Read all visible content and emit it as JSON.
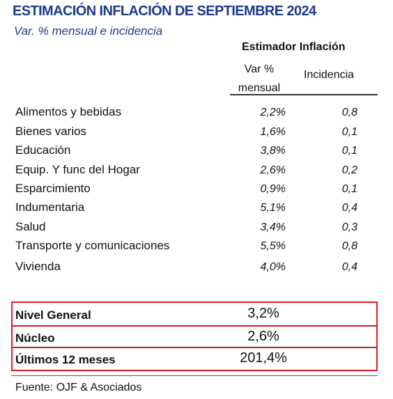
{
  "title": "ESTIMACIÓN INFLACIÓN DE SEPTIEMBRE 2024",
  "subtitle": "Var. % mensual e incidencia",
  "table": {
    "group_header": "Estimador Inflación",
    "col_var": "Var % mensual",
    "col_inc": "Incidencia",
    "rows": [
      {
        "category": "Alimentos y bebidas",
        "var": "2,2%",
        "inc": "0,8"
      },
      {
        "category": "Bienes varios",
        "var": "1,6%",
        "inc": "0,1"
      },
      {
        "category": "Educación",
        "var": "3,8%",
        "inc": "0,1"
      },
      {
        "category": "Equip. Y func del Hogar",
        "var": "2,6%",
        "inc": "0,2"
      },
      {
        "category": "Esparcimiento",
        "var": "0,9%",
        "inc": "0,1"
      },
      {
        "category": "Indumentaria",
        "var": "5,1%",
        "inc": "0,4"
      },
      {
        "category": "Salud",
        "var": "3,4%",
        "inc": "0,3"
      },
      {
        "category": "Transporte y comunicaciones",
        "var": "5,5%",
        "inc": "0,8"
      },
      {
        "category": "Vivienda",
        "var": "4,0%",
        "inc": "0,4"
      }
    ]
  },
  "summary": [
    {
      "label": "Nivel General",
      "value": "3,2%"
    },
    {
      "label": "Núcleo",
      "value": "2,6%"
    },
    {
      "label": "Últimos 12 meses",
      "value": "201,4%"
    }
  ],
  "source": "Fuente: OJF & Asociados",
  "colors": {
    "title": "#1f3a8a",
    "highlight_border": "#e11d25"
  }
}
